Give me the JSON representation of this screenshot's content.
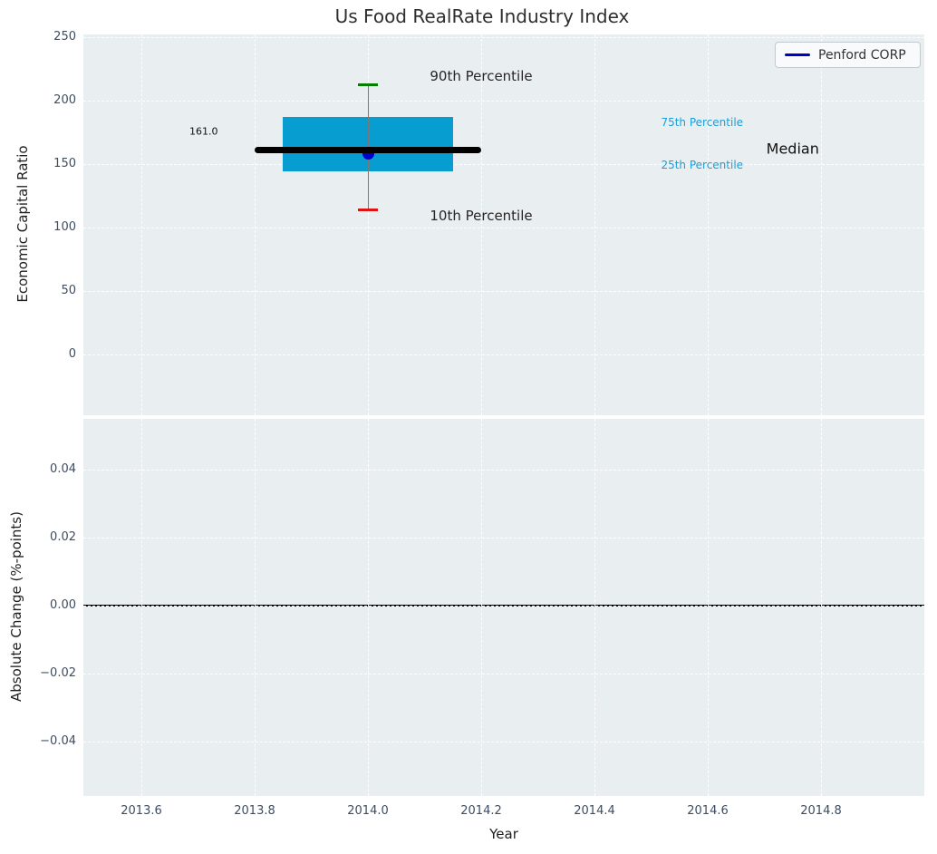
{
  "figure": {
    "title": "Us Food RealRate Industry Index",
    "legend": {
      "label": "Penford CORP",
      "position": "upper right"
    }
  },
  "colors": {
    "plot_bg": "#e9eef0",
    "grid": "#ffffff",
    "box_fill": "#089dd1",
    "median_line": "#000000",
    "whisker": "#7a7a7a",
    "cap_90th": "#007f00",
    "cap_10th": "#dc1414",
    "company_blue": "#0000cc",
    "percentile_label": "#1b9ed6",
    "tick_label": "#3d4d63"
  },
  "chart_data": [
    {
      "type": "box",
      "subplot": "top",
      "title": "Us Food RealRate Industry Index",
      "ylabel": "Economic Capital Ratio",
      "yticks": [
        250,
        200,
        150,
        100,
        50,
        0
      ],
      "ylim": [
        -48,
        252
      ],
      "xlim": [
        2013.49,
        2014.99
      ],
      "grid": true,
      "x_center": 2014.0,
      "box_x_range": [
        2013.85,
        2014.15
      ],
      "median_x_range": [
        2013.8,
        2014.2
      ],
      "cap_half_width_years": 0.017,
      "values": {
        "p90": 213,
        "p75": 187,
        "median": 161,
        "p25": 144,
        "p10": 114
      },
      "company_series": {
        "name": "Penford CORP",
        "points": [
          {
            "x": 2014.0,
            "y": 158
          }
        ]
      },
      "annotations": [
        {
          "text": "90th Percentile",
          "x": 2014.2,
          "y": 219,
          "color": "#262626",
          "size": 15
        },
        {
          "text": "10th Percentile",
          "x": 2014.2,
          "y": 109,
          "color": "#262626",
          "size": 15
        },
        {
          "text": "75th Percentile",
          "x": 2014.59,
          "y": 183,
          "color": "#1b9ed6",
          "size": 12
        },
        {
          "text": "25th Percentile",
          "x": 2014.59,
          "y": 149,
          "color": "#1b9ed6",
          "size": 12
        },
        {
          "text": "Median",
          "x": 2014.75,
          "y": 162,
          "color": "#111111",
          "size": 16
        },
        {
          "text": "161.0",
          "x": 2013.71,
          "y": 176,
          "color": "#111111",
          "size": 11
        }
      ],
      "legend_entries": [
        {
          "label": "Penford CORP",
          "line_color": "#0000cc"
        }
      ]
    },
    {
      "type": "line",
      "subplot": "bottom",
      "xlabel": "Year",
      "ylabel": "Absolute Change (%-points)",
      "yticks": [
        0.04,
        0.02,
        0.0,
        -0.02,
        -0.04
      ],
      "xticks": [
        2013.6,
        2013.8,
        2014.0,
        2014.2,
        2014.4,
        2014.6,
        2014.8
      ],
      "ylim": [
        -0.055,
        0.056
      ],
      "xlim": [
        2013.49,
        2014.99
      ],
      "grid": true,
      "zero_line_y": 0.0,
      "series": []
    }
  ]
}
